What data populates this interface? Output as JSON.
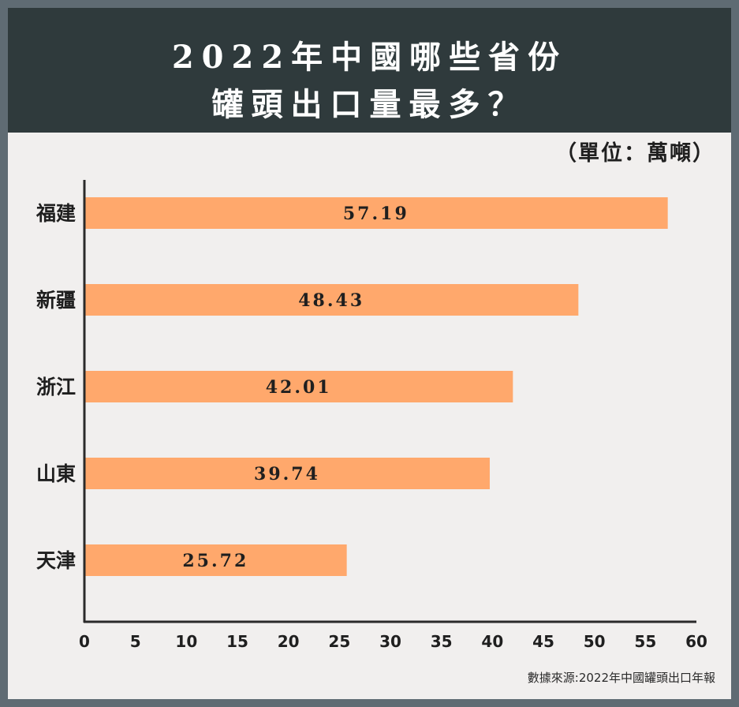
{
  "header": {
    "title_line1": "2022年中國哪些省份",
    "title_line2": "罐頭出口量最多？"
  },
  "unit_label": "（單位：萬噸）",
  "source": "數據來源:2022年中國罐頭出口年報",
  "colors": {
    "background": "#5f6b73",
    "header": "#2f3a3c",
    "panel": "#f1efee",
    "bar": "#ffa86c",
    "axis": "#2a2a2a",
    "text": "#1f1f1f"
  },
  "chart_data": {
    "type": "bar",
    "orientation": "horizontal",
    "title": "2022年中國哪些省份罐頭出口量最多？",
    "unit": "萬噸",
    "categories": [
      "福建",
      "新疆",
      "浙江",
      "山東",
      "天津"
    ],
    "values": [
      57.19,
      48.43,
      42.01,
      39.74,
      25.72
    ],
    "value_labels": [
      "57.19",
      "48.43",
      "42.01",
      "39.74",
      "25.72"
    ],
    "xlim": [
      0,
      60
    ],
    "xticks": [
      0,
      5,
      10,
      15,
      20,
      25,
      30,
      35,
      40,
      45,
      50,
      55,
      60
    ],
    "grid": false,
    "legend": "none"
  }
}
